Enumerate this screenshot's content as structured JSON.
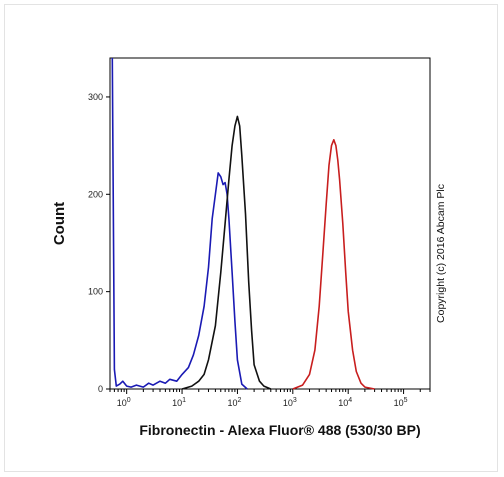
{
  "chart_data": {
    "type": "line",
    "xlabel": "Fibronectin - Alexa Fluor® 488 (530/30 BP)",
    "ylabel": "Count",
    "x_scale": "log",
    "xlim": [
      0.5,
      300000
    ],
    "ylim": [
      0,
      340
    ],
    "y_ticks": [
      {
        "value": 0,
        "label": "0"
      },
      {
        "value": 100,
        "label": "100"
      },
      {
        "value": 200,
        "label": "200"
      },
      {
        "value": 300,
        "label": "300"
      }
    ],
    "x_ticks": [
      {
        "value": 1,
        "base": "10",
        "exp": "0"
      },
      {
        "value": 10,
        "base": "10",
        "exp": "1"
      },
      {
        "value": 100,
        "base": "10",
        "exp": "2"
      },
      {
        "value": 1000,
        "base": "10",
        "exp": "3"
      },
      {
        "value": 10000,
        "base": "10",
        "exp": "4"
      },
      {
        "value": 100000,
        "base": "10",
        "exp": "5"
      }
    ],
    "annotation": "Copyright (c) 2016 Abcam Plc",
    "series": [
      {
        "color": "#1a1ab4",
        "x": [
          0.55,
          0.6,
          0.65,
          0.75,
          0.85,
          1.0,
          1.2,
          1.5,
          2.0,
          2.5,
          3.0,
          4.0,
          5.0,
          6.0,
          8.0,
          10,
          13,
          16,
          20,
          25,
          30,
          35,
          40,
          45,
          50,
          55,
          60,
          65,
          70,
          80,
          90,
          100,
          120,
          150
        ],
        "values": [
          340,
          20,
          3,
          5,
          8,
          3,
          2,
          4,
          2,
          6,
          4,
          8,
          6,
          10,
          8,
          15,
          22,
          35,
          55,
          85,
          125,
          175,
          200,
          222,
          218,
          210,
          212,
          200,
          175,
          120,
          70,
          30,
          5,
          0
        ]
      },
      {
        "color": "#111111",
        "x": [
          10,
          15,
          20,
          25,
          30,
          40,
          50,
          60,
          70,
          80,
          90,
          100,
          110,
          120,
          140,
          160,
          180,
          200,
          250,
          300,
          400
        ],
        "values": [
          0,
          3,
          8,
          15,
          30,
          65,
          120,
          170,
          215,
          250,
          270,
          280,
          270,
          240,
          180,
          110,
          60,
          25,
          8,
          3,
          0
        ]
      },
      {
        "color": "#c81e1e",
        "x": [
          1000,
          1500,
          2000,
          2500,
          3000,
          3500,
          4000,
          4500,
          5000,
          5500,
          6000,
          6500,
          7000,
          8000,
          9000,
          10000,
          12000,
          14000,
          17000,
          20000,
          30000
        ],
        "values": [
          0,
          4,
          15,
          40,
          85,
          140,
          190,
          230,
          250,
          256,
          250,
          235,
          215,
          170,
          120,
          80,
          40,
          18,
          6,
          2,
          0
        ]
      }
    ]
  }
}
